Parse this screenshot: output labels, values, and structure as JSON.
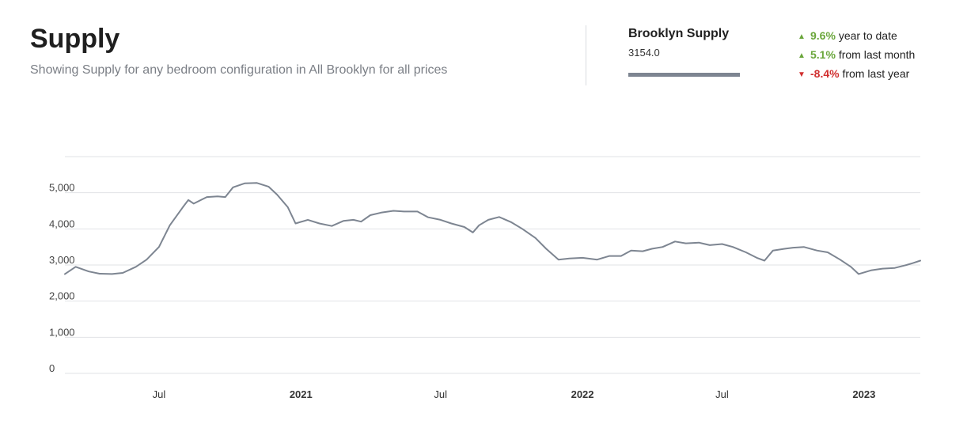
{
  "header": {
    "title": "Supply",
    "subtitle": "Showing Supply for any bedroom configuration in All Brooklyn for all prices"
  },
  "legend": {
    "name": "Brooklyn Supply",
    "value": "3154.0",
    "color": "#7d8591"
  },
  "stats": [
    {
      "direction": "up",
      "value": "9.6%",
      "label": "year to date",
      "color": "#6aa63b"
    },
    {
      "direction": "up",
      "value": "5.1%",
      "label": "from last month",
      "color": "#6aa63b"
    },
    {
      "direction": "down",
      "value": "-8.4%",
      "label": "from last year",
      "color": "#d12f2f"
    }
  ],
  "chart_data": {
    "type": "line",
    "title": "",
    "xlabel": "",
    "ylabel": "",
    "ylim": [
      0,
      6000
    ],
    "xlim": [
      "2020-03-01",
      "2023-03-15"
    ],
    "grid": true,
    "y_ticks": [
      {
        "value": 0,
        "label": "0"
      },
      {
        "value": 1000,
        "label": "1,000"
      },
      {
        "value": 2000,
        "label": "2,000"
      },
      {
        "value": 3000,
        "label": "3,000"
      },
      {
        "value": 4000,
        "label": "4,000"
      },
      {
        "value": 5000,
        "label": "5,000"
      }
    ],
    "x_ticks": [
      {
        "date": "2020-07-01",
        "label": "Jul",
        "bold": false
      },
      {
        "date": "2021-01-01",
        "label": "2021",
        "bold": true
      },
      {
        "date": "2021-07-01",
        "label": "Jul",
        "bold": false
      },
      {
        "date": "2022-01-01",
        "label": "2022",
        "bold": true
      },
      {
        "date": "2022-07-01",
        "label": "Jul",
        "bold": false
      },
      {
        "date": "2023-01-01",
        "label": "2023",
        "bold": true
      }
    ],
    "series": [
      {
        "name": "Brooklyn Supply",
        "color": "#7d8591",
        "points": [
          [
            "2020-03-01",
            2750
          ],
          [
            "2020-03-15",
            2950
          ],
          [
            "2020-04-01",
            2820
          ],
          [
            "2020-04-15",
            2760
          ],
          [
            "2020-05-01",
            2750
          ],
          [
            "2020-05-15",
            2780
          ],
          [
            "2020-06-01",
            2950
          ],
          [
            "2020-06-15",
            3150
          ],
          [
            "2020-07-01",
            3500
          ],
          [
            "2020-07-15",
            4100
          ],
          [
            "2020-08-01",
            4600
          ],
          [
            "2020-08-08",
            4800
          ],
          [
            "2020-08-15",
            4700
          ],
          [
            "2020-09-01",
            4880
          ],
          [
            "2020-09-15",
            4900
          ],
          [
            "2020-09-25",
            4880
          ],
          [
            "2020-10-05",
            5150
          ],
          [
            "2020-10-20",
            5260
          ],
          [
            "2020-11-05",
            5270
          ],
          [
            "2020-11-20",
            5170
          ],
          [
            "2020-12-01",
            4950
          ],
          [
            "2020-12-15",
            4600
          ],
          [
            "2020-12-25",
            4150
          ],
          [
            "2021-01-10",
            4250
          ],
          [
            "2021-01-25",
            4150
          ],
          [
            "2021-02-10",
            4080
          ],
          [
            "2021-02-25",
            4220
          ],
          [
            "2021-03-10",
            4250
          ],
          [
            "2021-03-20",
            4200
          ],
          [
            "2021-04-01",
            4380
          ],
          [
            "2021-04-15",
            4450
          ],
          [
            "2021-05-01",
            4500
          ],
          [
            "2021-05-15",
            4480
          ],
          [
            "2021-06-01",
            4480
          ],
          [
            "2021-06-15",
            4320
          ],
          [
            "2021-07-01",
            4250
          ],
          [
            "2021-07-15",
            4150
          ],
          [
            "2021-08-01",
            4050
          ],
          [
            "2021-08-12",
            3900
          ],
          [
            "2021-08-20",
            4100
          ],
          [
            "2021-09-01",
            4250
          ],
          [
            "2021-09-15",
            4330
          ],
          [
            "2021-10-01",
            4180
          ],
          [
            "2021-10-15",
            4000
          ],
          [
            "2021-11-01",
            3750
          ],
          [
            "2021-11-15",
            3450
          ],
          [
            "2021-12-01",
            3150
          ],
          [
            "2021-12-15",
            3180
          ],
          [
            "2022-01-01",
            3200
          ],
          [
            "2022-01-20",
            3150
          ],
          [
            "2022-02-05",
            3250
          ],
          [
            "2022-02-20",
            3250
          ],
          [
            "2022-03-05",
            3400
          ],
          [
            "2022-03-20",
            3380
          ],
          [
            "2022-04-01",
            3450
          ],
          [
            "2022-04-15",
            3500
          ],
          [
            "2022-05-01",
            3650
          ],
          [
            "2022-05-15",
            3600
          ],
          [
            "2022-06-01",
            3620
          ],
          [
            "2022-06-15",
            3550
          ],
          [
            "2022-07-01",
            3580
          ],
          [
            "2022-07-15",
            3500
          ],
          [
            "2022-08-01",
            3350
          ],
          [
            "2022-08-15",
            3200
          ],
          [
            "2022-08-25",
            3120
          ],
          [
            "2022-09-05",
            3400
          ],
          [
            "2022-09-20",
            3450
          ],
          [
            "2022-10-01",
            3480
          ],
          [
            "2022-10-15",
            3500
          ],
          [
            "2022-11-01",
            3400
          ],
          [
            "2022-11-15",
            3350
          ],
          [
            "2022-12-01",
            3150
          ],
          [
            "2022-12-15",
            2950
          ],
          [
            "2022-12-25",
            2750
          ],
          [
            "2023-01-10",
            2850
          ],
          [
            "2023-01-25",
            2900
          ],
          [
            "2023-02-10",
            2920
          ],
          [
            "2023-02-25",
            3000
          ],
          [
            "2023-03-05",
            3050
          ],
          [
            "2023-03-15",
            3120
          ]
        ]
      }
    ]
  }
}
